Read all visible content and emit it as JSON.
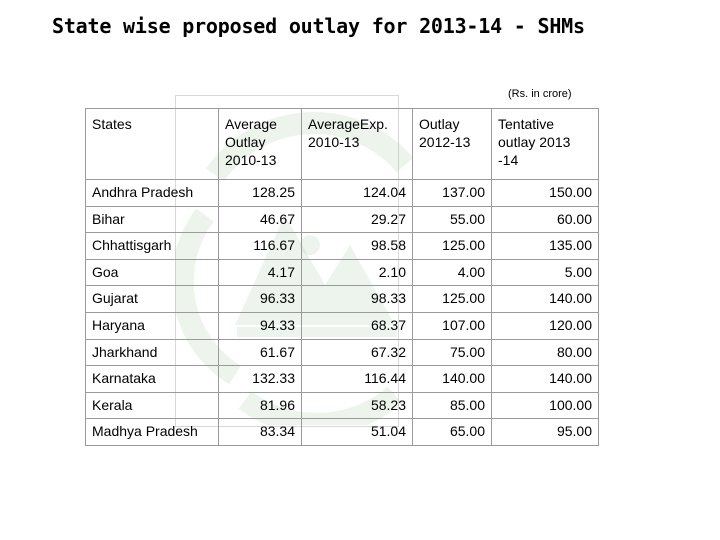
{
  "title": "State wise proposed outlay for 2013-14 - SHMs",
  "unit_note": "(Rs. in crore)",
  "table": {
    "headers": [
      "States",
      "Average Outlay 2010-13",
      "AverageExp. 2010-13",
      "Outlay 2012-13",
      "Tentative outlay 2013 -14"
    ],
    "rows": [
      {
        "state": "Andhra Pradesh",
        "avg_outlay": "128.25",
        "avg_exp": "124.04",
        "outlay_2012_13": "137.00",
        "tentative_2013_14": "150.00"
      },
      {
        "state": "Bihar",
        "avg_outlay": "46.67",
        "avg_exp": "29.27",
        "outlay_2012_13": "55.00",
        "tentative_2013_14": "60.00"
      },
      {
        "state": "Chhattisgarh",
        "avg_outlay": "116.67",
        "avg_exp": "98.58",
        "outlay_2012_13": "125.00",
        "tentative_2013_14": "135.00"
      },
      {
        "state": "Goa",
        "avg_outlay": "4.17",
        "avg_exp": "2.10",
        "outlay_2012_13": "4.00",
        "tentative_2013_14": "5.00"
      },
      {
        "state": "Gujarat",
        "avg_outlay": "96.33",
        "avg_exp": "98.33",
        "outlay_2012_13": "125.00",
        "tentative_2013_14": "140.00"
      },
      {
        "state": "Haryana",
        "avg_outlay": "94.33",
        "avg_exp": "68.37",
        "outlay_2012_13": "107.00",
        "tentative_2013_14": "120.00"
      },
      {
        "state": "Jharkhand",
        "avg_outlay": "61.67",
        "avg_exp": "67.32",
        "outlay_2012_13": "75.00",
        "tentative_2013_14": "80.00"
      },
      {
        "state": "Karnataka",
        "avg_outlay": "132.33",
        "avg_exp": "116.44",
        "outlay_2012_13": "140.00",
        "tentative_2013_14": "140.00"
      },
      {
        "state": "Kerala",
        "avg_outlay": "81.96",
        "avg_exp": "58.23",
        "outlay_2012_13": "85.00",
        "tentative_2013_14": "100.00"
      },
      {
        "state": "Madhya Pradesh",
        "avg_outlay": "83.34",
        "avg_exp": "51.04",
        "outlay_2012_13": "65.00",
        "tentative_2013_14": "95.00"
      }
    ]
  },
  "colors": {
    "watermark": "#6ea86e",
    "grid": "#9a9a9a"
  }
}
